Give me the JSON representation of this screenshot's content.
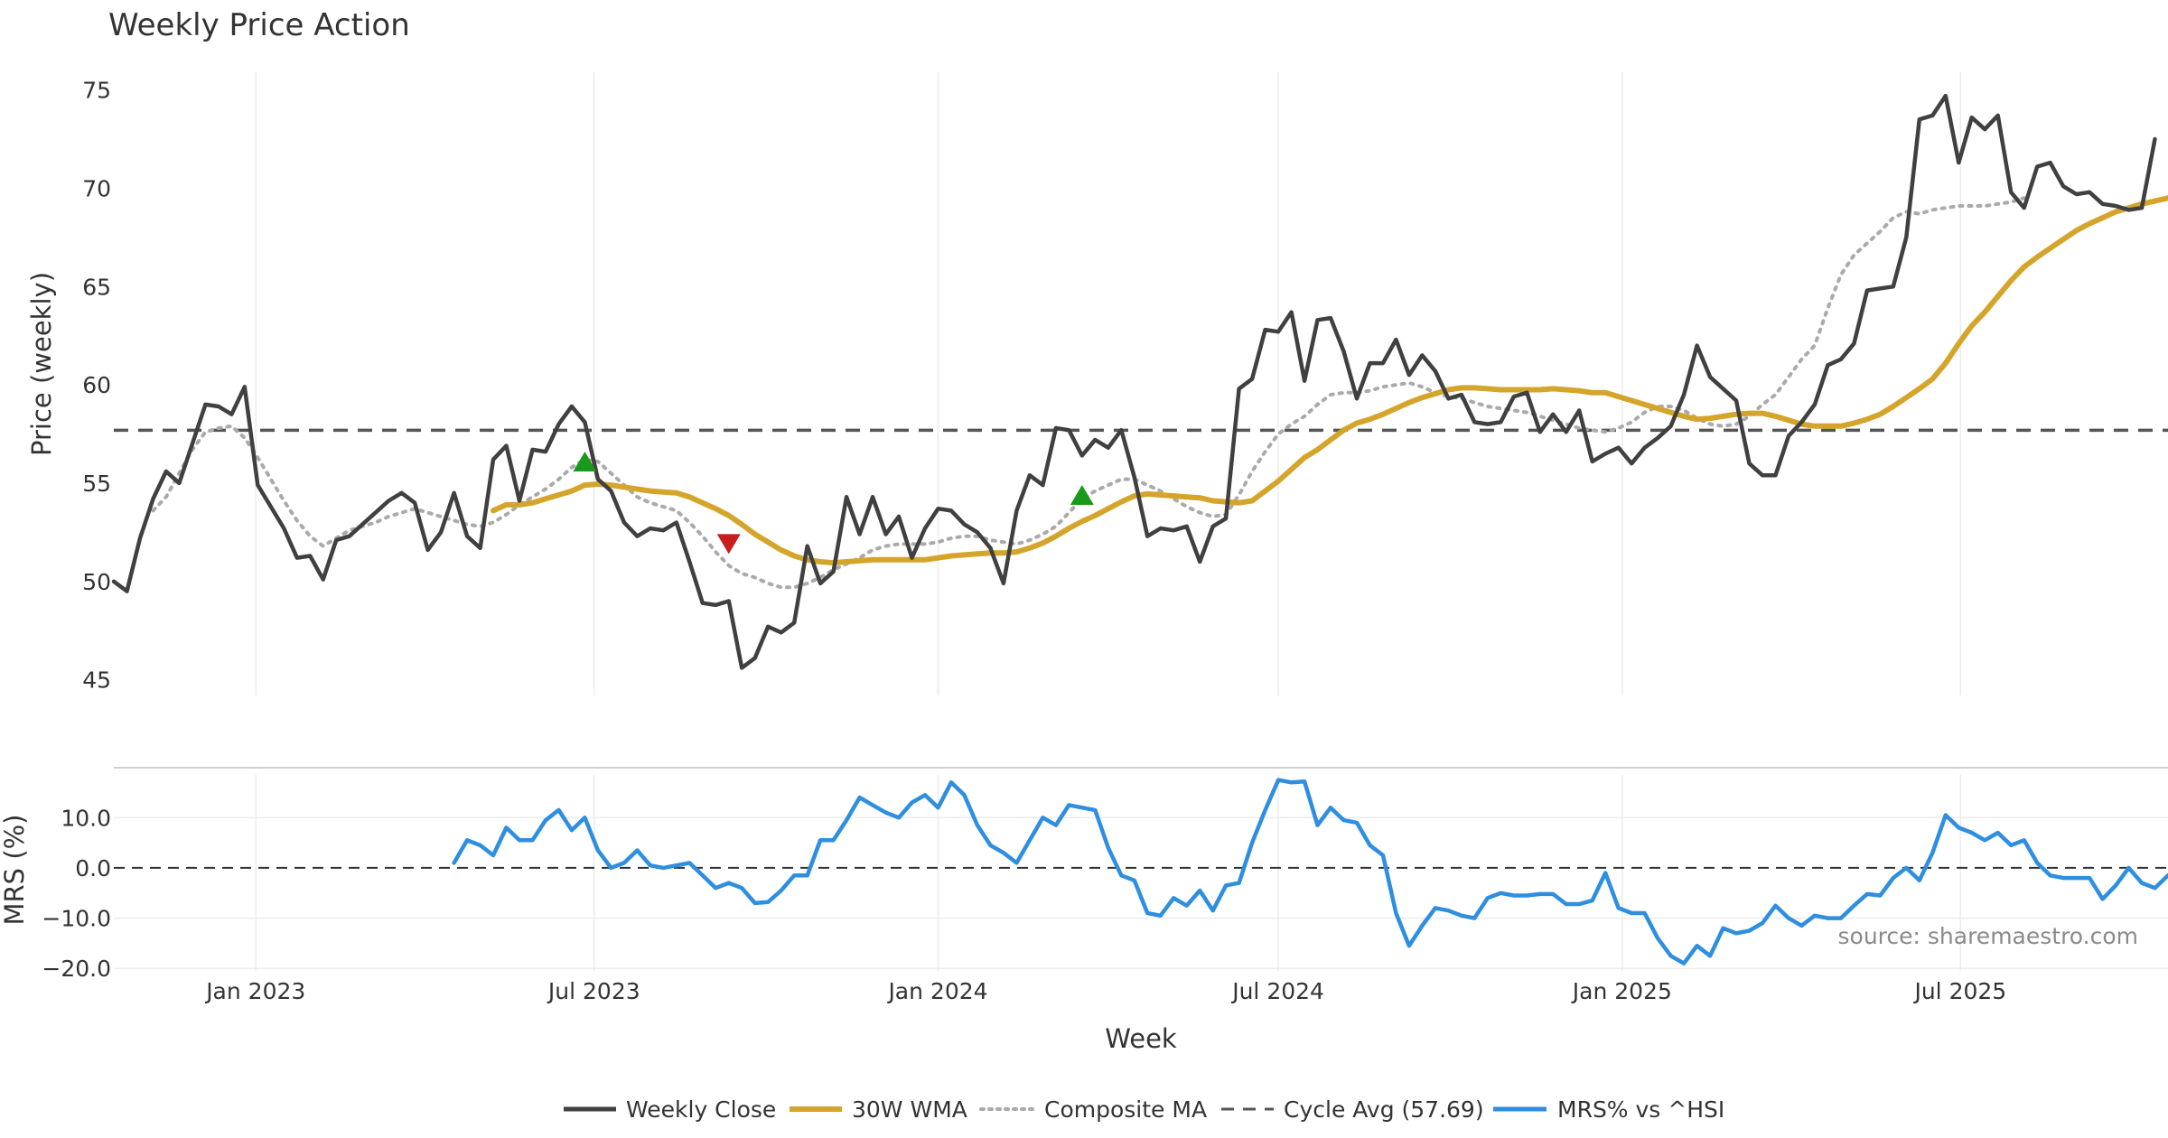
{
  "chart_data": {
    "title": "Weekly Price Action",
    "source": "source: sharemaestro.com",
    "xlabel": "Week",
    "x_ticks": [
      "Jan 2023",
      "Jul 2023",
      "Jan 2024",
      "Jul 2024",
      "Jan 2025",
      "Jul 2025"
    ],
    "x_range": [
      "2022-10-17",
      "2025-10-20"
    ],
    "legend": [
      "Weekly Close",
      "30W WMA",
      "Composite MA",
      "Cycle Avg (57.69)",
      "MRS% vs ^HSI"
    ],
    "colors": {
      "close": "#404040",
      "wma": "#d4a52a",
      "composite": "#aaaaaa",
      "cycle": "#555555",
      "mrs": "#2e8ee0",
      "buy": "#1a9a1a",
      "sell": "#c81e1e",
      "grid": "#ececec"
    },
    "panels": [
      {
        "type": "line",
        "ylabel": "Price (weekly)",
        "ylim": [
          44.2,
          75.9
        ],
        "yticks": [
          "45",
          "50",
          "55",
          "60",
          "65",
          "70",
          "75"
        ],
        "cycle_avg": 57.69,
        "series": [
          {
            "name": "Weekly Close",
            "values": [
              50.0,
              49.5,
              52.2,
              54.2,
              55.6,
              55.0,
              57.0,
              59.0,
              58.9,
              58.5,
              59.9,
              54.9,
              53.8,
              52.7,
              51.2,
              51.3,
              50.1,
              52.1,
              52.3,
              52.9,
              53.5,
              54.1,
              54.5,
              54.0,
              51.6,
              52.5,
              54.5,
              52.3,
              51.7,
              56.2,
              56.9,
              54.1,
              56.7,
              56.6,
              58.0,
              58.9,
              58.1,
              55.2,
              54.6,
              53.0,
              52.3,
              52.7,
              52.6,
              53.0,
              51.0,
              48.9,
              48.8,
              49.0,
              45.6,
              46.1,
              47.7,
              47.4,
              47.9,
              51.8,
              49.9,
              50.5,
              54.3,
              52.4,
              54.3,
              52.4,
              53.3,
              51.2,
              52.7,
              53.7,
              53.6,
              52.9,
              52.5,
              51.7,
              49.9,
              53.6,
              55.4,
              54.9,
              57.8,
              57.7,
              56.4,
              57.2,
              56.8,
              57.7,
              55.3,
              52.3,
              52.7,
              52.6,
              52.8,
              51.0,
              52.8,
              53.2,
              59.8,
              60.3,
              62.8,
              62.7,
              63.7,
              60.2,
              63.3,
              63.4,
              61.7,
              59.3,
              61.1,
              61.1,
              62.3,
              60.5,
              61.5,
              60.7,
              59.3,
              59.5,
              58.1,
              58.0,
              58.1,
              59.4,
              59.6,
              57.6,
              58.5,
              57.6,
              58.7,
              56.1,
              56.5,
              56.8,
              56.0,
              56.8,
              57.3,
              57.9,
              59.5,
              62.0,
              60.4,
              59.8,
              59.2,
              56.0,
              55.4,
              55.4,
              57.4,
              58.1,
              59.0,
              61.0,
              61.3,
              62.1,
              64.8,
              64.9,
              65.0,
              67.5,
              73.5,
              73.7,
              74.7,
              71.3,
              73.6,
              73.0,
              73.7,
              69.8,
              69.0,
              71.1,
              71.3,
              70.1,
              69.7,
              69.8,
              69.2,
              69.1,
              68.9,
              69.0,
              72.5
            ]
          },
          {
            "name": "30W WMA",
            "start_week": 29,
            "values": [
              53.6,
              53.9,
              53.9,
              54.0,
              54.2,
              54.4,
              54.6,
              54.9,
              54.95,
              54.9,
              54.8,
              54.7,
              54.6,
              54.55,
              54.5,
              54.3,
              54.0,
              53.7,
              53.35,
              52.9,
              52.4,
              52.0,
              51.6,
              51.3,
              51.1,
              51.0,
              50.95,
              51.0,
              51.05,
              51.1,
              51.1,
              51.1,
              51.1,
              51.1,
              51.2,
              51.3,
              51.35,
              51.4,
              51.45,
              51.45,
              51.5,
              51.7,
              51.95,
              52.3,
              52.7,
              53.05,
              53.35,
              53.7,
              54.05,
              54.35,
              54.45,
              54.4,
              54.35,
              54.3,
              54.25,
              54.1,
              54.05,
              54.0,
              54.1,
              54.6,
              55.1,
              55.7,
              56.3,
              56.7,
              57.2,
              57.7,
              58.05,
              58.25,
              58.5,
              58.8,
              59.1,
              59.35,
              59.55,
              59.75,
              59.85,
              59.85,
              59.8,
              59.75,
              59.75,
              59.75,
              59.75,
              59.8,
              59.75,
              59.7,
              59.6,
              59.6,
              59.4,
              59.2,
              59.0,
              58.8,
              58.6,
              58.4,
              58.25,
              58.3,
              58.4,
              58.5,
              58.55,
              58.55,
              58.4,
              58.2,
              58.0,
              57.9,
              57.9,
              57.9,
              58.05,
              58.25,
              58.5,
              58.9,
              59.35,
              59.8,
              60.3,
              61.1,
              62.1,
              63.0,
              63.7,
              64.5,
              65.3,
              66.0,
              66.5,
              66.95,
              67.4,
              67.85,
              68.2,
              68.5,
              68.8,
              69.0,
              69.2,
              69.35,
              69.5,
              69.9
            ]
          },
          {
            "name": "Composite MA",
            "start_week": 3,
            "values": [
              53.6,
              54.3,
              55.5,
              56.7,
              57.6,
              57.8,
              57.9,
              57.3,
              56.3,
              55.2,
              54.1,
              53.1,
              52.3,
              51.8,
              52.2,
              52.6,
              52.8,
              53.0,
              53.3,
              53.5,
              53.7,
              53.5,
              53.3,
              53.1,
              52.9,
              52.8,
              53.0,
              53.4,
              53.9,
              54.3,
              54.7,
              55.2,
              55.8,
              56.2,
              56.1,
              55.5,
              54.9,
              54.3,
              54.0,
              53.8,
              53.6,
              53.0,
              52.3,
              51.5,
              50.8,
              50.4,
              50.2,
              49.9,
              49.7,
              49.7,
              49.9,
              50.2,
              50.6,
              50.9,
              51.2,
              51.6,
              51.8,
              51.9,
              51.9,
              51.9,
              52.0,
              52.2,
              52.3,
              52.3,
              52.1,
              52.0,
              51.9,
              52.1,
              52.4,
              52.8,
              53.5,
              54.2,
              54.6,
              54.9,
              55.2,
              55.2,
              54.9,
              54.6,
              54.2,
              53.8,
              53.5,
              53.3,
              53.4,
              54.4,
              55.6,
              56.6,
              57.5,
              58.0,
              58.4,
              59.0,
              59.5,
              59.6,
              59.6,
              59.7,
              59.9,
              60.0,
              60.1,
              59.9,
              59.6,
              59.4,
              59.3,
              59.1,
              58.9,
              58.8,
              58.7,
              58.6,
              58.4,
              58.2,
              58.0,
              57.8,
              57.7,
              57.6,
              57.8,
              58.1,
              58.6,
              58.9,
              58.9,
              58.7,
              58.3,
              58.0,
              57.9,
              58.0,
              58.4,
              59.0,
              59.5,
              60.4,
              61.3,
              62.0,
              63.9,
              65.6,
              66.6,
              67.2,
              67.8,
              68.5,
              68.8,
              68.7,
              68.9,
              69.0,
              69.1,
              69.1,
              69.1,
              69.2,
              69.3,
              69.5
            ]
          }
        ],
        "signals": [
          {
            "type": "buy",
            "week": 36,
            "value": 56.1
          },
          {
            "type": "sell",
            "week": 47,
            "value": 51.9
          },
          {
            "type": "buy",
            "week": 74,
            "value": 54.4
          }
        ]
      },
      {
        "type": "line",
        "ylabel": "MRS (%)",
        "ylim": [
          -20.5,
          18.5
        ],
        "yticks": [
          "10.0",
          "0.0",
          "−10.0",
          "−20.0"
        ],
        "zero_line": 0,
        "series": [
          {
            "name": "MRS% vs ^HSI",
            "start_week": 26,
            "values": [
              1.0,
              5.5,
              4.5,
              2.5,
              8.0,
              5.5,
              5.5,
              9.5,
              11.5,
              7.5,
              10.0,
              3.5,
              0.0,
              1.0,
              3.5,
              0.5,
              0.0,
              0.5,
              1.0,
              -1.5,
              -4.0,
              -3.0,
              -4.0,
              -7.0,
              -6.8,
              -4.5,
              -1.5,
              -1.5,
              5.5,
              5.5,
              9.5,
              14.0,
              12.5,
              11.0,
              10.0,
              13.0,
              14.5,
              12.0,
              17.0,
              14.5,
              8.5,
              4.5,
              3.0,
              1.0,
              5.5,
              10.0,
              8.5,
              12.5,
              12.0,
              11.5,
              4.0,
              -1.5,
              -2.5,
              -9.0,
              -9.5,
              -6.0,
              -7.5,
              -4.5,
              -8.5,
              -3.5,
              -3.0,
              5.0,
              11.5,
              17.5,
              17.0,
              17.2,
              8.5,
              12.0,
              9.5,
              9.0,
              4.5,
              2.5,
              -9.0,
              -15.5,
              -11.5,
              -8.0,
              -8.5,
              -9.5,
              -10.0,
              -6.0,
              -5.0,
              -5.5,
              -5.5,
              -5.2,
              -5.2,
              -7.2,
              -7.2,
              -6.5,
              -1.0,
              -8.0,
              -9.0,
              -9.0,
              -14.0,
              -17.5,
              -19.0,
              -15.5,
              -17.5,
              -12.0,
              -13.0,
              -12.5,
              -11.0,
              -7.5,
              -10.0,
              -11.5,
              -9.5,
              -10.0,
              -10.0,
              -7.5,
              -5.2,
              -5.5,
              -2.0,
              0.0,
              -2.5,
              3.0,
              10.5,
              8.0,
              7.0,
              5.5,
              7.0,
              4.5,
              5.5,
              1.0,
              -1.5,
              -2.0,
              -2.0,
              -2.0,
              -6.2,
              -3.5,
              0.0,
              -3.0,
              -4.0,
              -1.5,
              0.0
            ]
          }
        ]
      }
    ]
  }
}
